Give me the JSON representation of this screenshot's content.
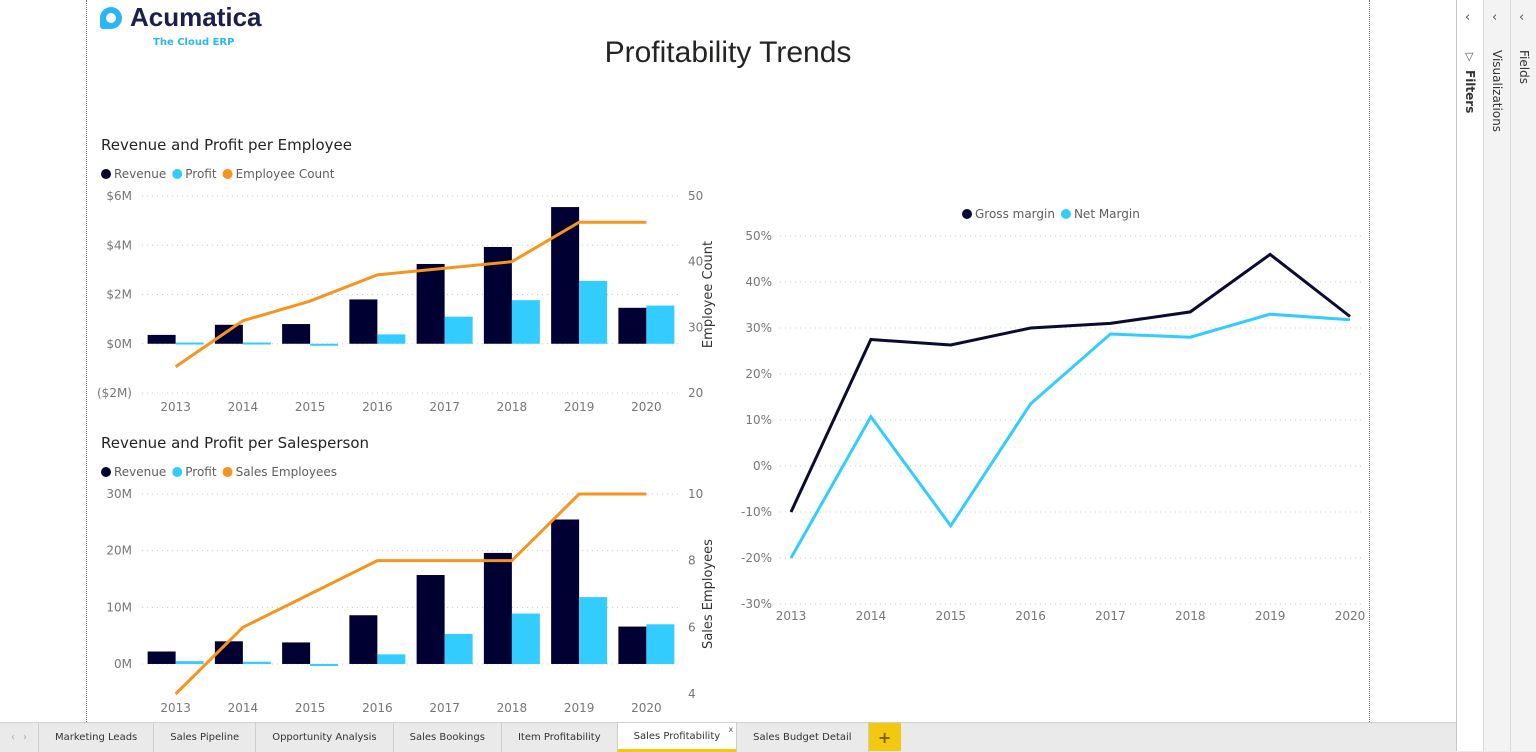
{
  "logo": {
    "name": "Acumatica",
    "tagline": "The Cloud ERP"
  },
  "page_title": "Profitability Trends",
  "colors": {
    "revenue": "#000033",
    "profit": "#33ccff",
    "line": "#f7941d",
    "gross": "#0a0a33",
    "net": "#33ccff",
    "tab_accent": "#f2c811"
  },
  "chart_data": [
    {
      "type": "bar",
      "title": "Revenue and Profit per Employee",
      "categories": [
        "2013",
        "2014",
        "2015",
        "2016",
        "2017",
        "2018",
        "2019",
        "2020"
      ],
      "series": [
        {
          "name": "Revenue",
          "values": [
            0.36,
            0.77,
            0.8,
            1.8,
            3.24,
            3.93,
            5.55,
            1.46
          ]
        },
        {
          "name": "Profit",
          "values": [
            0.05,
            0.05,
            -0.08,
            0.38,
            1.1,
            1.77,
            2.55,
            1.55
          ]
        }
      ],
      "line_series": {
        "name": "Employee Count",
        "values": [
          24,
          31,
          34,
          38,
          39,
          40,
          46,
          46
        ]
      },
      "ylim": [
        -2,
        6
      ],
      "yticks": [
        "$6M",
        "$4M",
        "$2M",
        "$0M",
        "($2M)"
      ],
      "ytick_values": [
        6,
        4,
        2,
        0,
        -2
      ],
      "y2lim": [
        20,
        50
      ],
      "y2ticks": [
        "50",
        "40",
        "30",
        "20"
      ],
      "y2tick_values": [
        50,
        40,
        30,
        20
      ],
      "y2label": "Employee Count",
      "legend": "top-left",
      "grid": true
    },
    {
      "type": "bar",
      "title": "Revenue and Profit per Salesperson",
      "categories": [
        "2013",
        "2014",
        "2015",
        "2016",
        "2017",
        "2018",
        "2019",
        "2020"
      ],
      "series": [
        {
          "name": "Revenue",
          "values": [
            2.2,
            4.0,
            3.8,
            8.6,
            15.7,
            19.6,
            25.5,
            6.6
          ]
        },
        {
          "name": "Profit",
          "values": [
            0.5,
            0.4,
            -0.3,
            1.7,
            5.3,
            8.9,
            11.8,
            7.0
          ]
        }
      ],
      "line_series": {
        "name": "Sales Employees",
        "values": [
          4,
          6,
          7,
          8,
          8,
          8,
          10,
          10
        ]
      },
      "ylim": [
        -5.3,
        30
      ],
      "yticks": [
        "30M",
        "20M",
        "10M",
        "0M"
      ],
      "ytick_values": [
        30,
        20,
        10,
        0
      ],
      "y2lim": [
        4,
        10
      ],
      "y2ticks": [
        "10",
        "8",
        "6",
        "4"
      ],
      "y2tick_values": [
        10,
        8,
        6,
        4
      ],
      "y2label": "Sales Employees",
      "legend": "top-left",
      "grid": true
    },
    {
      "type": "line",
      "title": "",
      "categories": [
        "2013",
        "2014",
        "2015",
        "2016",
        "2017",
        "2018",
        "2019",
        "2020"
      ],
      "series": [
        {
          "name": "Gross margin",
          "values": [
            -10,
            27.5,
            26.3,
            30,
            31,
            33.5,
            46,
            32.5
          ]
        },
        {
          "name": "Net Margin",
          "values": [
            -20,
            10.7,
            -13,
            13.5,
            28.7,
            28,
            33,
            31.8
          ]
        }
      ],
      "ylim": [
        -30,
        50
      ],
      "yticks": [
        "50%",
        "40%",
        "30%",
        "20%",
        "10%",
        "0%",
        "-10%",
        "-20%",
        "-30%"
      ],
      "ytick_values": [
        50,
        40,
        30,
        20,
        10,
        0,
        -10,
        -20,
        -30
      ],
      "legend": "top-center",
      "grid": true
    }
  ],
  "panes": [
    {
      "label": "Filters"
    },
    {
      "label": "Visualizations"
    },
    {
      "label": "Fields"
    }
  ],
  "tabs": [
    {
      "label": "Marketing Leads"
    },
    {
      "label": "Sales Pipeline"
    },
    {
      "label": "Opportunity Analysis"
    },
    {
      "label": "Sales Bookings"
    },
    {
      "label": "Item Profitability"
    },
    {
      "label": "Sales Profitability",
      "active": true
    },
    {
      "label": "Sales Budget Detail"
    }
  ],
  "add_tab": "+",
  "close_tab": "x"
}
